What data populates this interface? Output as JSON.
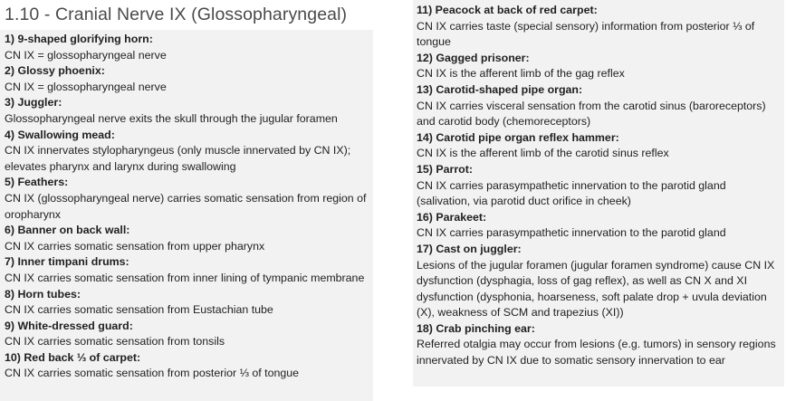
{
  "title": "1.10 - Cranial Nerve IX (Glossopharyngeal)",
  "left_entries": [
    {
      "heading": "1) 9-shaped glorifying horn:",
      "text": "CN IX = glossopharyngeal nerve"
    },
    {
      "heading": "2) Glossy phoenix:",
      "text": "CN IX = glossopharyngeal nerve"
    },
    {
      "heading": "3) Juggler:",
      "text": "Glossopharyngeal nerve exits the skull through the jugular foramen"
    },
    {
      "heading": "4) Swallowing mead:",
      "text": "CN IX innervates stylopharyngeus (only muscle innervated by CN IX); elevates pharynx and larynx during swallowing"
    },
    {
      "heading": "5) Feathers:",
      "text": "CN IX (glossopharyngeal nerve) carries somatic sensation from region of oropharynx"
    },
    {
      "heading": "6) Banner on back wall:",
      "text": "CN IX carries somatic sensation from upper pharynx"
    },
    {
      "heading": "7) Inner timpani drums:",
      "text": "CN IX carries somatic sensation from inner lining of tympanic membrane"
    },
    {
      "heading": "8) Horn tubes:",
      "text": "CN IX carries somatic sensation from Eustachian tube"
    },
    {
      "heading": "9) White-dressed guard:",
      "text": "CN IX carries somatic sensation from tonsils"
    },
    {
      "heading": "10) Red back ⅓ of carpet:",
      "text": "CN IX carries somatic sensation from posterior ⅓ of tongue"
    }
  ],
  "right_entries": [
    {
      "heading": "11) Peacock at back of red carpet:",
      "text": "CN IX carries taste (special sensory) information from posterior ⅓ of tongue"
    },
    {
      "heading": "12) Gagged prisoner:",
      "text": "CN IX is the afferent limb of the gag reflex"
    },
    {
      "heading": "13) Carotid-shaped pipe organ:",
      "text": "CN IX carries visceral sensation from the carotid sinus (baroreceptors) and carotid body (chemoreceptors)"
    },
    {
      "heading": "14) Carotid pipe organ reflex hammer:",
      "text": "CN IX is the afferent limb of the carotid sinus reflex"
    },
    {
      "heading": "15) Parrot:",
      "text": "CN IX carries parasympathetic innervation to the parotid gland (salivation, via parotid duct orifice in cheek)"
    },
    {
      "heading": "16) Parakeet:",
      "text": "CN IX carries parasympathetic innervation to the parotid gland"
    },
    {
      "heading": "17) Cast on juggler:",
      "text": "Lesions of the jugular foramen (jugular foramen syndrome) cause CN IX dysfunction (dysphagia, loss of gag reflex), as well as CN X and XI dysfunction (dysphonia, hoarseness, soft palate drop + uvula deviation (X), weakness of SCM and trapezius (XI))"
    },
    {
      "heading": "18) Crab pinching ear:",
      "text": "Referred otalgia may occur from lesions (e.g. tumors) in sensory regions innervated by CN IX due to somatic sensory innervation to ear"
    }
  ]
}
